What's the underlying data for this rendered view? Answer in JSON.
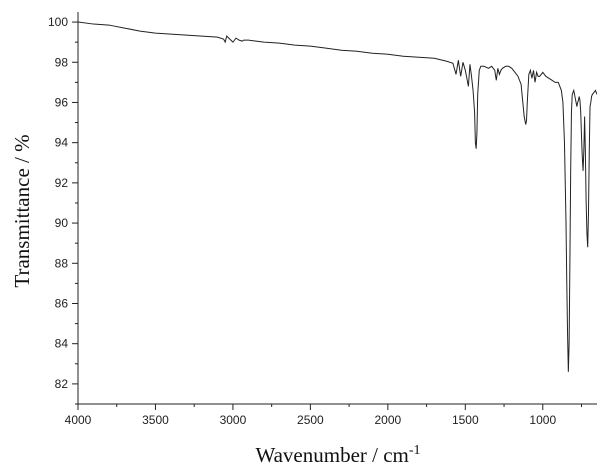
{
  "chart_data": {
    "type": "line",
    "title": "",
    "xlabel": "Wavenumber / cm",
    "xlabel_superscript": "-1",
    "ylabel": "Transmittance / %",
    "xlim": [
      4000,
      650
    ],
    "ylim": [
      81,
      100.5
    ],
    "x_reversed": true,
    "grid": false,
    "x_ticks": [
      4000,
      3500,
      3000,
      2500,
      2000,
      1500,
      1000
    ],
    "y_ticks": [
      82,
      84,
      86,
      88,
      90,
      92,
      94,
      96,
      98,
      100
    ],
    "line_color": "#222222",
    "series": [
      {
        "x": [
          4000,
          3900,
          3800,
          3700,
          3600,
          3500,
          3400,
          3300,
          3200,
          3100,
          3060,
          3050,
          3040,
          3020,
          3000,
          2980,
          2960,
          2940,
          2930,
          2920,
          2900,
          2850,
          2800,
          2700,
          2600,
          2500,
          2400,
          2300,
          2200,
          2100,
          2000,
          1900,
          1800,
          1700,
          1620,
          1580,
          1560,
          1545,
          1530,
          1515,
          1500,
          1490,
          1480,
          1470,
          1460,
          1450,
          1440,
          1435,
          1430,
          1425,
          1420,
          1410,
          1400,
          1380,
          1350,
          1330,
          1310,
          1300,
          1290,
          1280,
          1270,
          1260,
          1240,
          1220,
          1200,
          1180,
          1160,
          1140,
          1130,
          1120,
          1110,
          1105,
          1100,
          1090,
          1080,
          1070,
          1060,
          1050,
          1040,
          1030,
          1020,
          1010,
          1000,
          980,
          960,
          940,
          920,
          900,
          880,
          870,
          860,
          850,
          845,
          840,
          835,
          830,
          825,
          820,
          815,
          810,
          800,
          790,
          780,
          775,
          770,
          765,
          760,
          755,
          750,
          745,
          740,
          735,
          730,
          725,
          720,
          715,
          710,
          705,
          700,
          695,
          690,
          685,
          680,
          670,
          660,
          650
        ],
        "y": [
          100.0,
          99.9,
          99.85,
          99.7,
          99.55,
          99.45,
          99.4,
          99.35,
          99.3,
          99.25,
          99.15,
          99.0,
          99.3,
          99.15,
          99.0,
          99.2,
          99.1,
          99.05,
          99.1,
          99.1,
          99.1,
          99.05,
          99.0,
          98.95,
          98.85,
          98.8,
          98.7,
          98.6,
          98.55,
          98.45,
          98.4,
          98.3,
          98.25,
          98.2,
          98.05,
          97.95,
          97.4,
          98.1,
          97.3,
          98.0,
          97.6,
          97.2,
          96.8,
          97.9,
          97.3,
          96.6,
          95.5,
          94.0,
          93.7,
          94.5,
          96.4,
          97.6,
          97.8,
          97.8,
          97.7,
          97.8,
          97.6,
          97.1,
          97.7,
          97.4,
          97.6,
          97.7,
          97.8,
          97.8,
          97.7,
          97.5,
          97.3,
          96.9,
          96.1,
          95.3,
          94.9,
          95.1,
          96.0,
          97.4,
          97.6,
          97.2,
          97.6,
          97.0,
          97.5,
          97.3,
          97.3,
          97.4,
          97.5,
          97.3,
          97.2,
          97.1,
          97.0,
          97.0,
          96.6,
          96.0,
          94.0,
          90.0,
          87.0,
          84.5,
          82.6,
          84.0,
          88.0,
          92.5,
          95.5,
          96.4,
          96.6,
          96.2,
          95.8,
          96.0,
          96.1,
          96.3,
          96.1,
          95.5,
          94.3,
          93.3,
          92.6,
          93.6,
          95.3,
          93.5,
          91.0,
          89.5,
          88.8,
          90.5,
          93.5,
          95.8,
          96.0,
          96.3,
          96.4,
          96.5,
          96.6,
          96.4
        ]
      }
    ]
  }
}
